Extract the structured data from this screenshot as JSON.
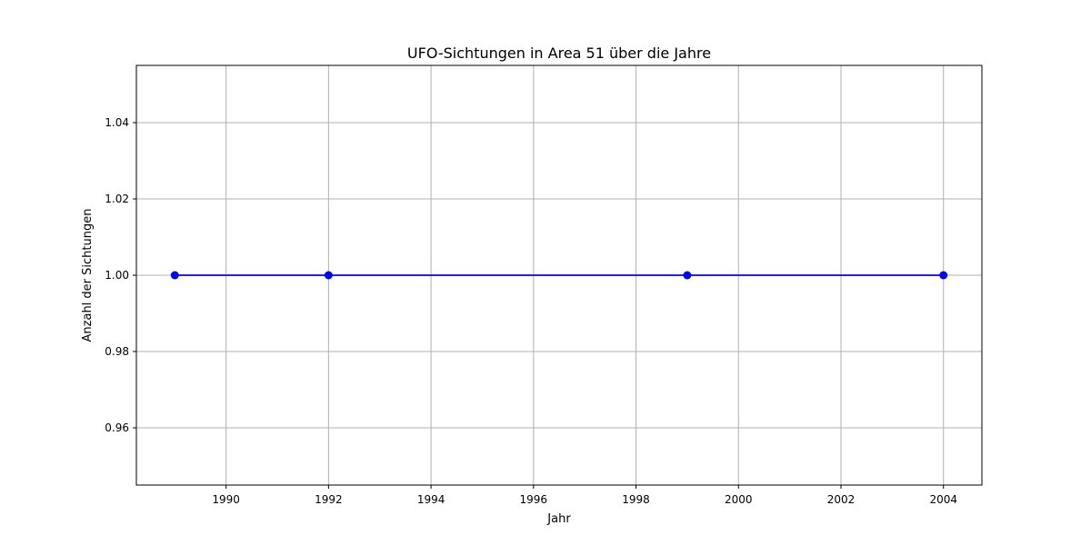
{
  "chart_data": {
    "type": "line",
    "title": "UFO-Sichtungen in Area 51 über die Jahre",
    "xlabel": "Jahr",
    "ylabel": "Anzahl der Sichtungen",
    "xlim": [
      1988.25,
      2004.75
    ],
    "ylim": [
      0.945,
      1.055
    ],
    "x_ticks": [
      1990,
      1992,
      1994,
      1996,
      1998,
      2000,
      2002,
      2004
    ],
    "y_ticks": [
      0.96,
      0.98,
      1.0,
      1.02,
      1.04
    ],
    "y_tick_labels": [
      "0.96",
      "0.98",
      "1.00",
      "1.02",
      "1.04"
    ],
    "grid": true,
    "series": [
      {
        "x": [
          1989,
          1992,
          1999,
          2004
        ],
        "y": [
          1,
          1,
          1,
          1
        ],
        "color": "#0000ff",
        "marker": "circle"
      }
    ]
  }
}
